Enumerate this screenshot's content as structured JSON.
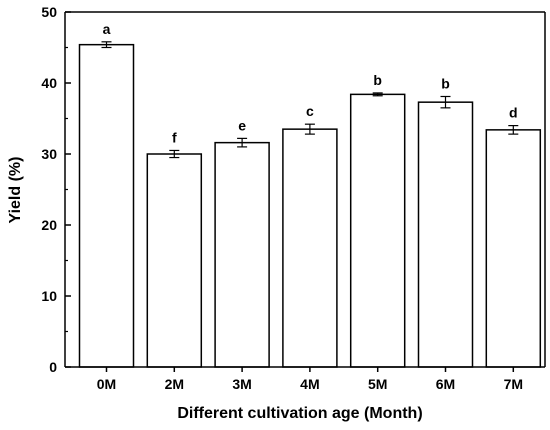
{
  "chart_data": {
    "type": "bar",
    "xlabel": "Different cultivation age (Month)",
    "ylabel": "Yield (%)",
    "ylim": [
      0,
      50
    ],
    "yticks": [
      0,
      10,
      20,
      30,
      40,
      50
    ],
    "categories": [
      "0M",
      "2M",
      "3M",
      "4M",
      "5M",
      "6M",
      "7M"
    ],
    "values": [
      45.4,
      30.0,
      31.6,
      33.5,
      38.4,
      37.3,
      33.4
    ],
    "errors": [
      0.4,
      0.5,
      0.6,
      0.7,
      0.2,
      0.8,
      0.6
    ],
    "significance": [
      "a",
      "f",
      "e",
      "c",
      "b",
      "b",
      "d"
    ],
    "bar_fill": "#ffffff",
    "bar_stroke": "#000000",
    "grid": false,
    "legend": "none"
  }
}
